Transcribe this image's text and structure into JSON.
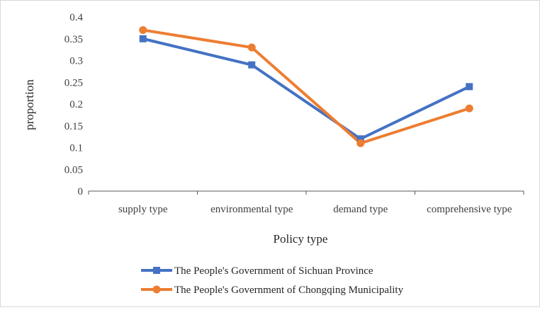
{
  "chart_data": {
    "type": "line",
    "categories": [
      "supply type",
      "environmental type",
      "demand type",
      "comprehensive type"
    ],
    "series": [
      {
        "name": "The People's Government of Sichuan Province",
        "values": [
          0.35,
          0.29,
          0.12,
          0.24
        ],
        "color": "#4472C4",
        "marker": "square"
      },
      {
        "name": "The People's Government of Chongqing Municipality",
        "values": [
          0.37,
          0.33,
          0.11,
          0.19
        ],
        "color": "#ED7D31",
        "marker": "circle"
      }
    ],
    "xlabel": "Policy type",
    "ylabel": "proportion",
    "ylim": [
      0,
      0.4
    ],
    "yticks": [
      "0",
      "0.05",
      "0.1",
      "0.15",
      "0.2",
      "0.25",
      "0.3",
      "0.35",
      "0.4"
    ],
    "grid": false,
    "legend_position": "bottom"
  }
}
